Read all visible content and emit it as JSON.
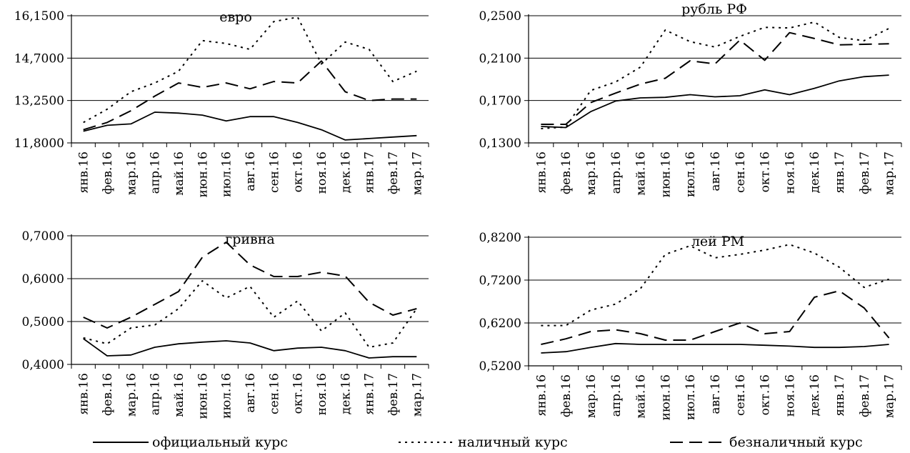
{
  "chart_data": [
    {
      "type": "line",
      "title": "евро",
      "categories": [
        "янв.16",
        "фев.16",
        "мар.16",
        "апр.16",
        "май.16",
        "июн.16",
        "июл.16",
        "авг.16",
        "сен.16",
        "окт.16",
        "ноя.16",
        "дек.16",
        "янв.17",
        "фев.17",
        "мар.17"
      ],
      "ylim": [
        11.8,
        16.15
      ],
      "yticks": [
        "16,1500",
        "14,7000",
        "13,2500",
        "11,8000"
      ],
      "yticks_values": [
        16.15,
        14.7,
        13.25,
        11.8
      ],
      "series": [
        {
          "name": "официальный курс",
          "values": [
            12.2,
            12.4,
            12.45,
            12.85,
            12.82,
            12.75,
            12.55,
            12.7,
            12.7,
            12.5,
            12.25,
            11.9,
            11.95,
            12.0,
            12.05
          ]
        },
        {
          "name": "наличный курс",
          "values": [
            12.5,
            12.95,
            13.55,
            13.85,
            14.25,
            15.3,
            15.2,
            15.0,
            15.95,
            16.1,
            14.5,
            15.25,
            15.0,
            13.9,
            14.25
          ]
        },
        {
          "name": "безналичный курс",
          "values": [
            12.25,
            12.5,
            12.9,
            13.4,
            13.85,
            13.7,
            13.85,
            13.65,
            13.9,
            13.85,
            14.6,
            13.55,
            13.25,
            13.3,
            13.3
          ]
        }
      ]
    },
    {
      "type": "line",
      "title": "рубль РФ",
      "categories": [
        "янв.16",
        "фев.16",
        "мар.16",
        "апр.16",
        "май.16",
        "июн.16",
        "июл.16",
        "авг.16",
        "сен.16",
        "окт.16",
        "ноя.16",
        "дек.16",
        "янв.17",
        "фев.17",
        "мар.17"
      ],
      "ylim": [
        0.13,
        0.25
      ],
      "yticks": [
        "0,2500",
        "0,2100",
        "0,1700",
        "0,1300"
      ],
      "yticks_values": [
        0.25,
        0.21,
        0.17,
        0.13
      ],
      "series": [
        {
          "name": "официальный курс",
          "values": [
            0.1455,
            0.1445,
            0.1595,
            0.1695,
            0.1725,
            0.173,
            0.1755,
            0.1735,
            0.1745,
            0.18,
            0.1755,
            0.1815,
            0.1885,
            0.1925,
            0.194
          ]
        },
        {
          "name": "наличный курс",
          "values": [
            0.1435,
            0.145,
            0.1795,
            0.1875,
            0.2015,
            0.2365,
            0.2255,
            0.2205,
            0.2305,
            0.239,
            0.2385,
            0.244,
            0.2295,
            0.2265,
            0.238
          ]
        },
        {
          "name": "безналичный курс",
          "values": [
            0.1475,
            0.1475,
            0.168,
            0.177,
            0.1855,
            0.191,
            0.2075,
            0.2045,
            0.227,
            0.208,
            0.234,
            0.2285,
            0.2225,
            0.223,
            0.2235
          ]
        }
      ]
    },
    {
      "type": "line",
      "title": "гривна",
      "categories": [
        "янв.16",
        "фев.16",
        "мар.16",
        "апр.16",
        "май.16",
        "июн.16",
        "июл.16",
        "авг.16",
        "сен.16",
        "окт.16",
        "ноя.16",
        "дек.16",
        "янв.17",
        "фев.17",
        "мар.17"
      ],
      "ylim": [
        0.4,
        0.7
      ],
      "yticks": [
        "0,7000",
        "0,6000",
        "0,5000",
        "0,4000"
      ],
      "yticks_values": [
        0.7,
        0.6,
        0.5,
        0.4
      ],
      "series": [
        {
          "name": "официальный курс",
          "values": [
            0.46,
            0.42,
            0.422,
            0.44,
            0.448,
            0.452,
            0.455,
            0.45,
            0.432,
            0.438,
            0.44,
            0.432,
            0.415,
            0.418,
            0.418
          ]
        },
        {
          "name": "наличный курс",
          "values": [
            0.462,
            0.448,
            0.485,
            0.492,
            0.53,
            0.595,
            0.555,
            0.582,
            0.51,
            0.548,
            0.478,
            0.52,
            0.44,
            0.45,
            0.53
          ]
        },
        {
          "name": "безналичный курс",
          "values": [
            0.51,
            0.485,
            0.51,
            0.54,
            0.57,
            0.65,
            0.685,
            0.632,
            0.605,
            0.605,
            0.615,
            0.606,
            0.545,
            0.515,
            0.53
          ]
        }
      ]
    },
    {
      "type": "line",
      "title": "лей РМ",
      "categories": [
        "янв.16",
        "фев.16",
        "мар.16",
        "апр.16",
        "май.16",
        "июн.16",
        "июл.16",
        "авг.16",
        "сен.16",
        "окт.16",
        "ноя.16",
        "дек.16",
        "янв.17",
        "фев.17",
        "мар.17"
      ],
      "ylim": [
        0.52,
        0.82
      ],
      "yticks": [
        "0,8200",
        "0,7200",
        "0,6200",
        "0,5200"
      ],
      "yticks_values": [
        0.82,
        0.72,
        0.62,
        0.52
      ],
      "series": [
        {
          "name": "официальный курс",
          "values": [
            0.55,
            0.553,
            0.563,
            0.572,
            0.57,
            0.57,
            0.57,
            0.57,
            0.57,
            0.568,
            0.566,
            0.563,
            0.563,
            0.565,
            0.57
          ]
        },
        {
          "name": "наличный курс",
          "values": [
            0.614,
            0.614,
            0.65,
            0.664,
            0.7,
            0.78,
            0.8,
            0.772,
            0.78,
            0.79,
            0.803,
            0.783,
            0.75,
            0.703,
            0.722
          ]
        },
        {
          "name": "безналичный курс",
          "values": [
            0.57,
            0.583,
            0.6,
            0.604,
            0.595,
            0.58,
            0.58,
            0.6,
            0.62,
            0.595,
            0.6,
            0.68,
            0.695,
            0.655,
            0.585
          ]
        }
      ]
    }
  ],
  "legend": [
    {
      "label": "официальный курс",
      "style": "solid"
    },
    {
      "label": "наличный курс",
      "style": "dotted"
    },
    {
      "label": "безналичный курс",
      "style": "dashed"
    }
  ]
}
